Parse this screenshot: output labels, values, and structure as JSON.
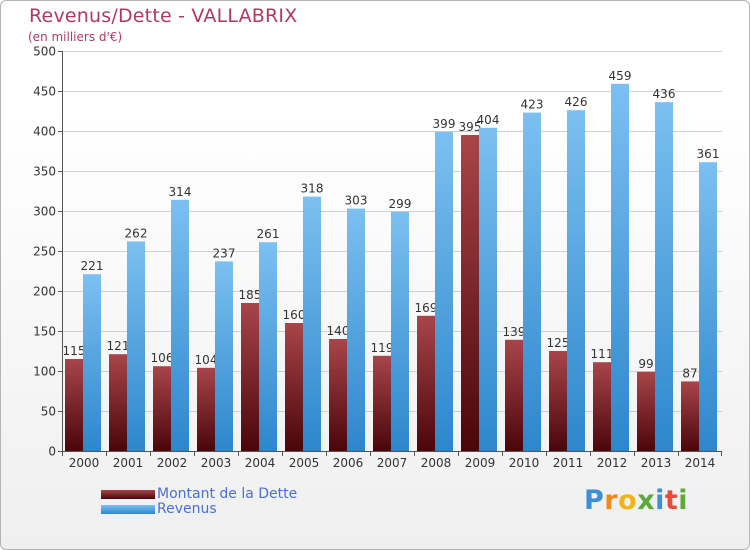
{
  "header": {
    "title": "Revenus/Dette - VALLABRIX",
    "subtitle": "(en milliers d'€)"
  },
  "legend": {
    "items": [
      {
        "label": "Montant de la Dette",
        "color": "#7a1a1f"
      },
      {
        "label": "Revenus",
        "color": "#3d9be0"
      }
    ]
  },
  "logo": {
    "text": "Proxiti"
  },
  "chart_data": {
    "type": "bar",
    "title": "Revenus/Dette - VALLABRIX",
    "ylabel": "(en milliers d'€)",
    "xlabel": "",
    "ylim": [
      0,
      500
    ],
    "yticks": [
      0,
      50,
      100,
      150,
      200,
      250,
      300,
      350,
      400,
      450,
      500
    ],
    "grid": true,
    "categories": [
      "2000",
      "2001",
      "2002",
      "2003",
      "2004",
      "2005",
      "2006",
      "2007",
      "2008",
      "2009",
      "2010",
      "2011",
      "2012",
      "2013",
      "2014"
    ],
    "series": [
      {
        "name": "Montant de la Dette",
        "color": "#7a1a1f",
        "values": [
          115,
          121,
          106,
          104,
          185,
          160,
          140,
          119,
          169,
          395,
          139,
          125,
          111,
          99,
          87
        ]
      },
      {
        "name": "Revenus",
        "color": "#3d9be0",
        "values": [
          221,
          262,
          314,
          237,
          261,
          318,
          303,
          299,
          399,
          404,
          423,
          426,
          459,
          436,
          361
        ]
      }
    ]
  }
}
